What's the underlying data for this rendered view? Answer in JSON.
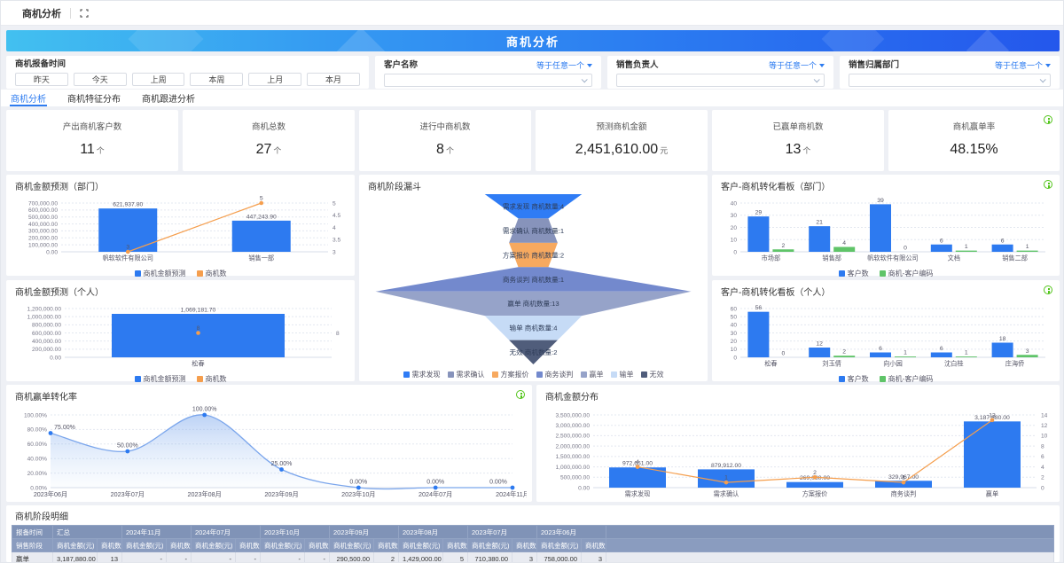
{
  "topbar": {
    "tab": "商机分析"
  },
  "banner": {
    "title": "商机分析"
  },
  "filters": {
    "time": {
      "label": "商机报备时间",
      "buttons": [
        "昨天",
        "今天",
        "上周",
        "本周",
        "上月",
        "本月"
      ]
    },
    "selects": [
      {
        "label": "客户名称",
        "op": "等于任意一个"
      },
      {
        "label": "销售负责人",
        "op": "等于任意一个"
      },
      {
        "label": "销售归属部门",
        "op": "等于任意一个"
      }
    ]
  },
  "tabs": [
    {
      "label": "商机分析",
      "active": true
    },
    {
      "label": "商机特征分布",
      "active": false
    },
    {
      "label": "商机跟进分析",
      "active": false
    }
  ],
  "kpis": [
    {
      "title": "产出商机客户数",
      "value": "11",
      "unit": "个"
    },
    {
      "title": "商机总数",
      "value": "27",
      "unit": "个"
    },
    {
      "title": "进行中商机数",
      "value": "8",
      "unit": "个"
    },
    {
      "title": "预测商机金额",
      "value": "2,451,610.00",
      "unit": "元"
    },
    {
      "title": "已赢单商机数",
      "value": "13",
      "unit": "个"
    },
    {
      "title": "商机赢单率",
      "value": "48.15%",
      "unit": "",
      "info": true
    }
  ],
  "colors": {
    "blue": "#2d7af0",
    "orange": "#f59e4d",
    "green": "#5fc468",
    "accent": "#2e7cf0",
    "info_green": "#52c41a",
    "table_header": "#8093b7"
  },
  "chart_data": [
    {
      "type": "bar-line",
      "title": "商机金额预测（部门）",
      "categories": [
        "帆软软件有限公司",
        "销售一部"
      ],
      "series": [
        {
          "name": "商机金额预测",
          "type": "bar",
          "color": "#2d7af0",
          "values": [
            621937.8,
            447243.9
          ],
          "labels": [
            "621,937.80",
            "447,243.90"
          ]
        },
        {
          "name": "商机数",
          "type": "line",
          "color": "#f59e4d",
          "values": [
            3,
            5
          ]
        }
      ],
      "left_axis": {
        "min": 0,
        "max": 700000,
        "step": 100000
      },
      "right_axis": {
        "min": 3,
        "max": 5,
        "step": 0.5
      }
    },
    {
      "type": "bar-line",
      "title": "商机金额预测（个人）",
      "categories": [
        "松春"
      ],
      "series": [
        {
          "name": "商机金额预测",
          "type": "bar",
          "color": "#2d7af0",
          "values": [
            1069181.7
          ],
          "labels": [
            "1,069,181.70"
          ]
        },
        {
          "name": "商机数",
          "type": "line",
          "color": "#f59e4d",
          "values": [
            8
          ]
        }
      ],
      "left_axis": {
        "min": 0,
        "max": 1200000,
        "step": 200000
      },
      "right_axis": {
        "min": 0,
        "max": 16,
        "ticks": [
          8
        ]
      }
    },
    {
      "type": "funnel",
      "title": "商机阶段漏斗",
      "label_prefix": "商机数量:",
      "stages": [
        {
          "name": "需求发现",
          "count": 4,
          "color": "#2f7cf5"
        },
        {
          "name": "需求确认",
          "count": 1,
          "color": "#8793bb"
        },
        {
          "name": "方案报价",
          "count": 2,
          "color": "#f7a95f"
        },
        {
          "name": "商务谈判",
          "count": 1,
          "color": "#7389cd"
        },
        {
          "name": "赢单",
          "count": 13,
          "color": "#96a3c9"
        },
        {
          "name": "输单",
          "count": 4,
          "color": "#c6dbf6"
        },
        {
          "name": "无效",
          "count": 2,
          "color": "#505d7b"
        }
      ]
    },
    {
      "type": "grouped-bar",
      "title": "客户-商机转化看板（部门）",
      "info": true,
      "categories": [
        "市场部",
        "销售部",
        "帆软软件有限公司",
        "文档",
        "销售二部"
      ],
      "series": [
        {
          "name": "客户数",
          "type": "bar",
          "color": "#2d7af0",
          "values": [
            29,
            21,
            39,
            6,
            6
          ]
        },
        {
          "name": "商机-客户编码",
          "type": "bar",
          "color": "#5fc468",
          "values": [
            2,
            4,
            0,
            1,
            1
          ]
        }
      ],
      "left_axis": {
        "min": 0,
        "max": 40,
        "step": 10
      }
    },
    {
      "type": "grouped-bar",
      "title": "客户-商机转化看板（个人）",
      "info": true,
      "categories": [
        "松春",
        "刘玉倩",
        "向小园",
        "沈白桂",
        "庄海侨"
      ],
      "series": [
        {
          "name": "客户数",
          "type": "bar",
          "color": "#2d7af0",
          "values": [
            56,
            12,
            6,
            6,
            18
          ]
        },
        {
          "name": "商机-客户编码",
          "type": "bar",
          "color": "#5fc468",
          "values": [
            0,
            2,
            1,
            1,
            3
          ]
        }
      ],
      "left_axis": {
        "min": 0,
        "max": 60,
        "step": 10
      }
    },
    {
      "type": "area",
      "title": "商机赢单转化率",
      "info": true,
      "x": [
        "2023年06月",
        "2023年07月",
        "2023年08月",
        "2023年09月",
        "2023年10月",
        "2024年07月",
        "2024年11月"
      ],
      "values": [
        75,
        50,
        100,
        25,
        0,
        0,
        0
      ],
      "labels": [
        "75.00%",
        "50.00%",
        "100.00%",
        "25.00%",
        "0.00%",
        "0.00%",
        "0.00%"
      ],
      "left_axis": {
        "min": 0,
        "max": 100,
        "step": 20
      },
      "line_color": "#7ba6ec",
      "dot_color": "#2d7af0"
    },
    {
      "type": "bar-line",
      "title": "商机金额分布",
      "categories": [
        "需求发现",
        "需求确认",
        "方案报价",
        "商务谈判",
        "赢单"
      ],
      "series": [
        {
          "name": "商机金额",
          "type": "bar",
          "color": "#2d7af0",
          "values": [
            972651,
            879912,
            269080,
            329967,
            3187880
          ],
          "labels": [
            "972,651.00",
            "879,912.00",
            "269,080.00",
            "329,967.00",
            "3,187,880.00"
          ]
        },
        {
          "name": "商机数量",
          "type": "line",
          "color": "#f59e4d",
          "values": [
            4,
            1,
            2,
            1,
            13
          ]
        }
      ],
      "left_axis": {
        "min": 0,
        "max": 3500000,
        "step": 500000
      },
      "right_axis": {
        "min": 0,
        "max": 14,
        "step": 2
      }
    }
  ],
  "detail_table": {
    "title": "商机阶段明细",
    "corner_top": "报备时间",
    "corner_bottom": "销售阶段",
    "sub_headers": [
      "商机金额(元)",
      "商机数量"
    ],
    "groups": [
      "汇总",
      "2024年11月",
      "2024年07月",
      "2023年10月",
      "2023年09月",
      "2023年08月",
      "2023年07月",
      "2023年06月"
    ],
    "rows": [
      {
        "stage": "赢单",
        "cells": [
          [
            "3,187,880.00",
            "13"
          ],
          [
            "-",
            "-"
          ],
          [
            "-",
            "-"
          ],
          [
            "-",
            "-"
          ],
          [
            "290,500.00",
            "2"
          ],
          [
            "1,429,000.00",
            "5"
          ],
          [
            "710,380.00",
            "3"
          ],
          [
            "758,000.00",
            "3"
          ]
        ]
      }
    ]
  }
}
